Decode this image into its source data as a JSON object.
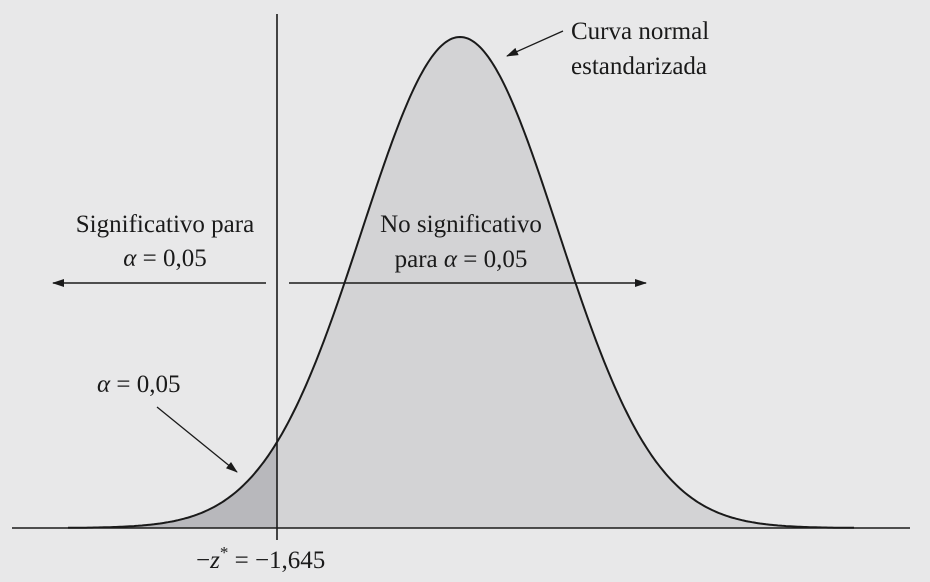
{
  "curve_label": {
    "line1": "Curva normal",
    "line2": "estandarizada"
  },
  "left_region": {
    "line1": "Significativo para",
    "alpha_symbol": "α",
    "equals_value": " = 0,05"
  },
  "right_region": {
    "line1": "No significativo",
    "prefix": "para ",
    "alpha_symbol": "α",
    "equals_value": " = 0,05"
  },
  "tail_area": {
    "alpha_symbol": "α",
    "equals_value": " = 0,05"
  },
  "critical_value": {
    "prefix": "−",
    "symbol": "z",
    "superscript": "*",
    "equals_value": " = −1,645"
  },
  "colors": {
    "background": "#e8e8e9",
    "curve_fill": "#d3d3d5",
    "tail_fill": "#b8b8bc",
    "line": "#1a1a1a"
  }
}
